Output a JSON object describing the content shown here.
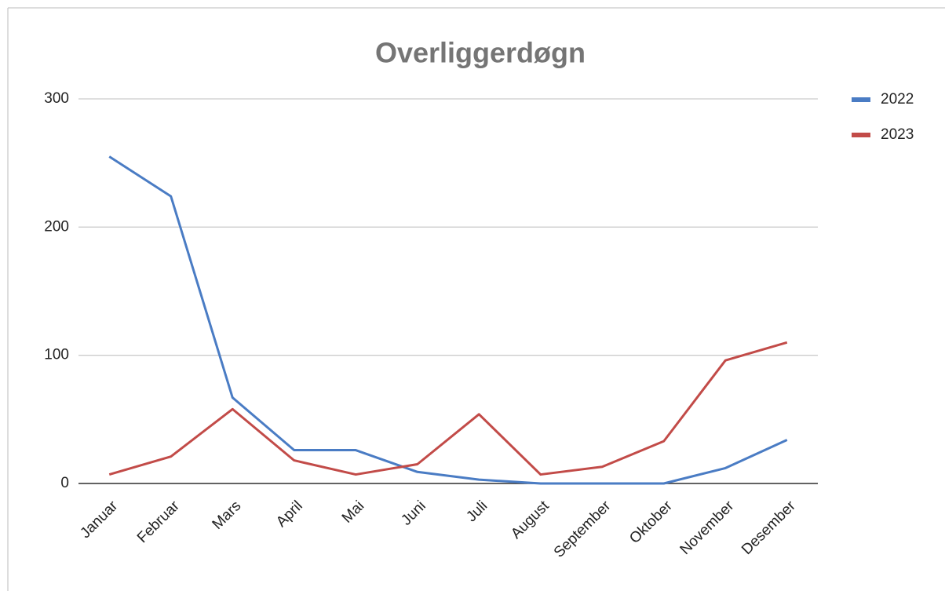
{
  "chart_data": {
    "type": "line",
    "title": "Overliggerdøgn",
    "categories": [
      "Januar",
      "Februar",
      "Mars",
      "April",
      "Mai",
      "Juni",
      "Juli",
      "August",
      "September",
      "Oktober",
      "November",
      "Desember"
    ],
    "series": [
      {
        "name": "2022",
        "color": "#4a7cc4",
        "values": [
          255,
          224,
          67,
          26,
          26,
          9,
          3,
          0,
          0,
          0,
          12,
          34
        ]
      },
      {
        "name": "2023",
        "color": "#c24b48",
        "values": [
          7,
          21,
          58,
          18,
          7,
          15,
          54,
          7,
          13,
          33,
          96,
          110
        ]
      }
    ],
    "ylim": [
      0,
      300
    ],
    "yticks": [
      0,
      100,
      200,
      300
    ],
    "grid": true,
    "legend": "right"
  }
}
